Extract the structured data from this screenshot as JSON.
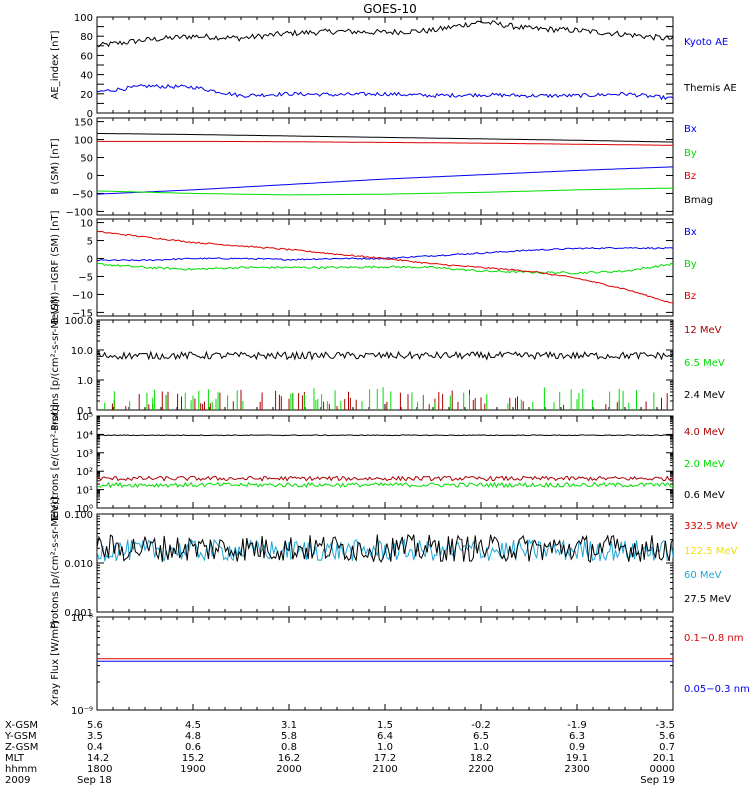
{
  "title": "GOES-10",
  "colors": {
    "black": "#000000",
    "blue": "#0000ee",
    "red": "#dd0000",
    "green": "#00dd00",
    "darkred": "#aa0000",
    "yellow": "#f0e000",
    "cyan": "#1fa7d8"
  },
  "chart_data": [
    {
      "type": "line",
      "name": "ae_index",
      "ylabel": "AE_index [nT]",
      "ylim": [
        0,
        100
      ],
      "log": false,
      "ticks": [
        0,
        10,
        20,
        30,
        40,
        50,
        60,
        70,
        80,
        90,
        100
      ],
      "tick_labels": [
        "0",
        "",
        "20",
        "",
        "40",
        "",
        "60",
        "",
        "80",
        "",
        "100"
      ],
      "x": [
        0,
        0.5,
        1,
        1.5,
        2,
        2.5,
        3,
        3.5,
        4,
        4.5,
        5,
        5.5,
        6
      ],
      "series": [
        {
          "name": "Kyoto AE",
          "color": "#0000ee",
          "line_color": "#000000",
          "values": [
            70,
            76,
            80,
            78,
            83,
            85,
            84,
            86,
            95,
            88,
            86,
            82,
            77
          ],
          "noise": 3
        },
        {
          "name": "Themis AE",
          "color": "#000000",
          "line_color": "#0000ee",
          "values": [
            22,
            28,
            27,
            18,
            20,
            19,
            20,
            18,
            19,
            18,
            18,
            20,
            15
          ],
          "noise": 2
        }
      ]
    },
    {
      "type": "line",
      "name": "b_sm",
      "ylabel": "B (SM) [nT]",
      "ylim": [
        -110,
        160
      ],
      "log": false,
      "ticks": [
        -100,
        -50,
        0,
        50,
        100,
        150
      ],
      "tick_labels": [
        "−100",
        "−50",
        "0",
        "50",
        "100",
        "150"
      ],
      "x": [
        0,
        1,
        2,
        3,
        4,
        5,
        6
      ],
      "series": [
        {
          "name": "Bx",
          "color": "#0000ee",
          "values": [
            -52,
            -40,
            -25,
            -10,
            2,
            14,
            24
          ],
          "noise": 0
        },
        {
          "name": "By",
          "color": "#00dd00",
          "values": [
            -43,
            -50,
            -54,
            -52,
            -47,
            -40,
            -35
          ],
          "noise": 0
        },
        {
          "name": "Bz",
          "color": "#dd0000",
          "values": [
            95,
            95,
            94,
            92,
            90,
            87,
            84
          ],
          "noise": 0
        },
        {
          "name": "Bmag",
          "color": "#000000",
          "values": [
            117,
            114,
            110,
            106,
            102,
            98,
            93
          ],
          "noise": 0
        }
      ]
    },
    {
      "type": "line",
      "name": "b_minus_igrf",
      "ylabel": "B (SM)−IGRF (SM) [nT]",
      "ylim": [
        -16,
        11
      ],
      "log": false,
      "ticks": [
        -15,
        -10,
        -5,
        0,
        5,
        10
      ],
      "tick_labels": [
        "−15",
        "−10",
        "−5",
        "0",
        "5",
        "10"
      ],
      "x": [
        0,
        0.5,
        1,
        1.5,
        2,
        2.5,
        3,
        3.5,
        4,
        4.5,
        5,
        5.5,
        6
      ],
      "series": [
        {
          "name": "Bx",
          "color": "#0000ee",
          "values": [
            -0.5,
            -0.5,
            0,
            0,
            -0.3,
            0,
            0,
            0.8,
            1.5,
            2.3,
            2.8,
            3,
            2.8
          ],
          "noise": 0.2
        },
        {
          "name": "By",
          "color": "#00dd00",
          "values": [
            -1.5,
            -2.5,
            -3,
            -2.5,
            -2.5,
            -2.5,
            -2.3,
            -2.5,
            -3.5,
            -3.8,
            -4,
            -3.5,
            -1.5
          ],
          "noise": 0.3
        },
        {
          "name": "Bz",
          "color": "#dd0000",
          "values": [
            7.5,
            6,
            4.5,
            3.5,
            2.5,
            1.2,
            0,
            -1.5,
            -2.5,
            -3.5,
            -5.5,
            -8.5,
            -12.5
          ],
          "noise": 0.2
        }
      ]
    },
    {
      "type": "line",
      "name": "protons_low",
      "ylabel": "Protons [p/(cm²-s-sr-MeV)]",
      "ylim": [
        0.1,
        100
      ],
      "log": true,
      "ticks": [
        0.1,
        1,
        10,
        100
      ],
      "tick_labels": [
        "0.1",
        "1.0",
        "10.0",
        "100.0"
      ],
      "x": [
        0,
        6
      ],
      "series": [
        {
          "name": "12 MeV",
          "color": "#aa0000",
          "line_color": "#aa0000",
          "values": [
            0.12,
            0.12
          ],
          "noise": 0.5,
          "spiky": true
        },
        {
          "name": "6.5 MeV",
          "color": "#00dd00",
          "line_color": "#00dd00",
          "values": [
            0.15,
            0.15
          ],
          "noise": 0.6,
          "spiky": true
        },
        {
          "name": "2.4 MeV",
          "color": "#000000",
          "line_color": "#000000",
          "values": [
            6.5,
            6.5
          ],
          "noise": 0.12
        }
      ]
    },
    {
      "type": "line",
      "name": "electrons",
      "ylabel": "Electrons [e/(cm²-s-sr)]",
      "ylim": [
        1,
        100000
      ],
      "log": true,
      "ticks": [
        1,
        10,
        100,
        1000,
        10000,
        100000
      ],
      "tick_labels": [
        "10⁰",
        "10¹",
        "10²",
        "10³",
        "10⁴",
        "10⁵"
      ],
      "x": [
        0,
        6
      ],
      "series": [
        {
          "name": "4.0 MeV",
          "color": "#aa0000",
          "line_color": "#aa0000",
          "values": [
            40,
            40
          ],
          "noise": 0.12
        },
        {
          "name": "2.0 MeV",
          "color": "#00dd00",
          "line_color": "#00dd00",
          "values": [
            18,
            18
          ],
          "noise": 0.12
        },
        {
          "name": "0.6 MeV",
          "color": "#000000",
          "line_color": "#000000",
          "values": [
            9000,
            9000
          ],
          "noise": 0.02
        }
      ]
    },
    {
      "type": "line",
      "name": "protons_high",
      "ylabel": "Protons [p/(cm²-s-sr-MeV)]",
      "ylim": [
        0.001,
        0.1
      ],
      "log": true,
      "ticks": [
        0.001,
        0.01,
        0.1
      ],
      "tick_labels": [
        "0.001",
        "0.010",
        "0.100"
      ],
      "x": [
        0,
        6
      ],
      "series": [
        {
          "name": "332.5 MeV",
          "color": "#dd0000",
          "line_color": "#dd0000",
          "values": [
            0.02,
            0.02
          ],
          "noise": 0,
          "hidden": true
        },
        {
          "name": "122.5 MeV",
          "color": "#f0e000",
          "line_color": "#f0e000",
          "values": [
            0.02,
            0.02
          ],
          "noise": 0,
          "hidden": true
        },
        {
          "name": "60 MeV",
          "color": "#1fa7d8",
          "line_color": "#1fa7d8",
          "values": [
            0.018,
            0.018
          ],
          "noise": 0.22
        },
        {
          "name": "27.5 MeV",
          "color": "#000000",
          "line_color": "#000000",
          "values": [
            0.02,
            0.02
          ],
          "noise": 0.28
        }
      ]
    },
    {
      "type": "line",
      "name": "xray_flux",
      "ylabel": "Xray Flux [W/m²]",
      "ylim": [
        1e-09,
        1e-08
      ],
      "log": true,
      "ticks": [
        1e-09,
        1e-08
      ],
      "tick_labels": [
        "10⁻⁹",
        "10⁻⁸"
      ],
      "x": [
        0,
        6
      ],
      "series": [
        {
          "name": "0.1−0.8 nm",
          "color": "#dd0000",
          "line_color": "#dd0000",
          "values": [
            3.55e-09,
            3.55e-09
          ],
          "noise": 0
        },
        {
          "name": "0.05−0.3 nm",
          "color": "#0000ee",
          "line_color": "#0000ee",
          "values": [
            3.35e-09,
            3.35e-09
          ],
          "noise": 0
        }
      ]
    }
  ],
  "x_axis": {
    "range": [
      0,
      6
    ],
    "major_ticks": [
      0,
      1,
      2,
      3,
      4,
      5,
      6
    ],
    "minor_per_major": 6,
    "rows": [
      {
        "label": "X-GSM",
        "values": [
          "5.6",
          "4.5",
          "3.1",
          "1.5",
          "-0.2",
          "-1.9",
          "-3.5"
        ]
      },
      {
        "label": "Y-GSM",
        "values": [
          "3.5",
          "4.8",
          "5.8",
          "6.4",
          "6.5",
          "6.3",
          "5.6"
        ]
      },
      {
        "label": "Z-GSM",
        "values": [
          "0.4",
          "0.6",
          "0.8",
          "1.0",
          "1.0",
          "0.9",
          "0.7"
        ]
      },
      {
        "label": "MLT",
        "values": [
          "14.2",
          "15.2",
          "16.2",
          "17.2",
          "18.2",
          "19.1",
          "20.1"
        ]
      },
      {
        "label": "hhmm",
        "values": [
          "1800",
          "1900",
          "2000",
          "2100",
          "2200",
          "2300",
          "0000"
        ]
      }
    ],
    "year_label": "2009",
    "start_date": "Sep 18",
    "end_date": "Sep 19"
  }
}
